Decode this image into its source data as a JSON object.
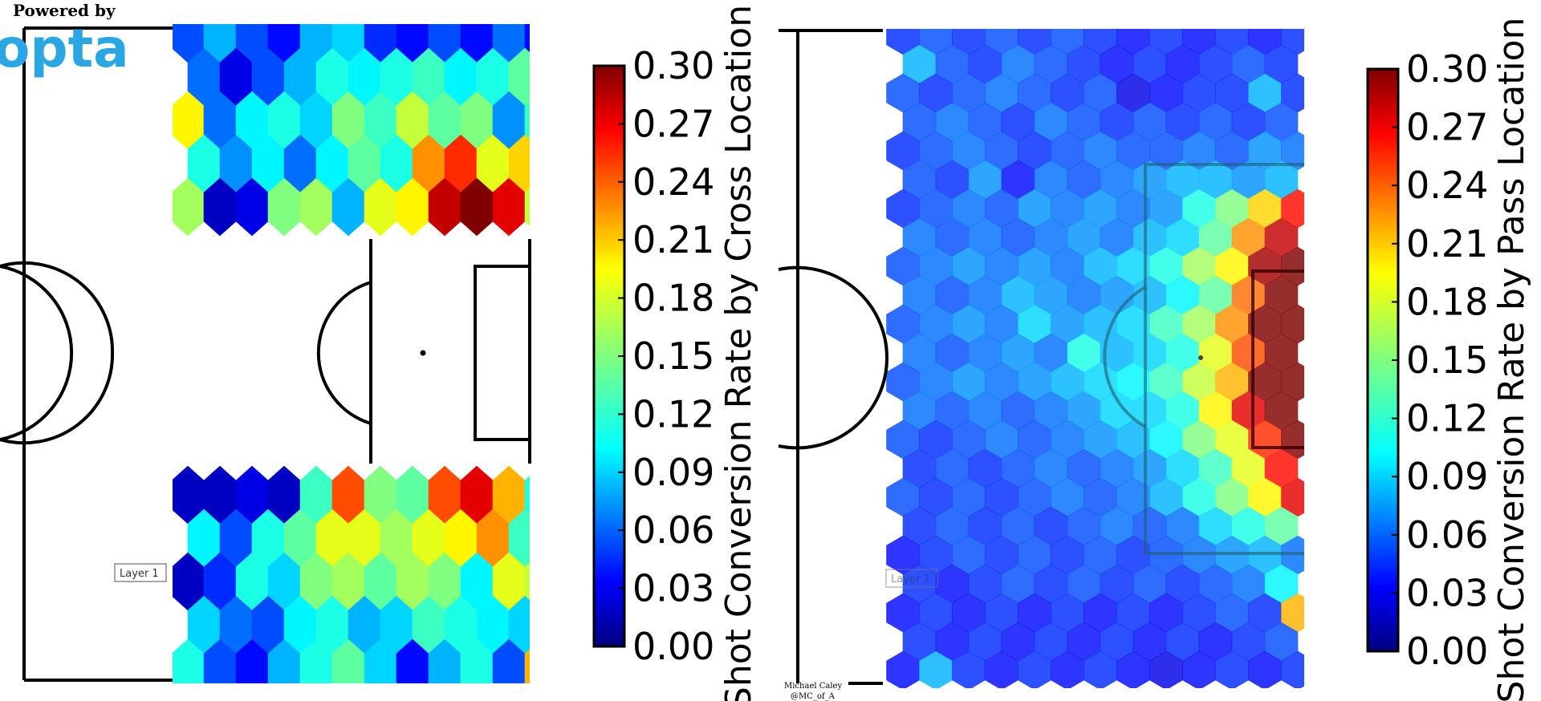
{
  "branding": {
    "powered_by": "Powered by",
    "logo_text": "opta",
    "credit_line1": "Michael Caley",
    "credit_line2": "@MC_of_A"
  },
  "chart_data": [
    {
      "type": "heatmap",
      "subtype": "hexbin",
      "title": "",
      "colorbar_label": "Shot Conversion Rate by Cross Location",
      "colorbar_ticks": [
        "0.30",
        "0.27",
        "0.24",
        "0.21",
        "0.18",
        "0.15",
        "0.12",
        "0.09",
        "0.06",
        "0.03",
        "0.00"
      ],
      "vmin": 0.0,
      "vmax": 0.3,
      "colormap": "jet",
      "annotation": "Layer 1",
      "regions": [
        {
          "name": "top",
          "rows": [
            [
              0.06,
              0.09,
              0.06,
              0.04,
              0.09,
              0.1,
              0.05,
              0.04,
              0.06,
              0.04,
              0.07,
              0.04
            ],
            [
              0.07,
              0.03,
              0.06,
              0.09,
              0.12,
              0.11,
              0.12,
              0.13,
              0.11,
              0.12,
              0.14
            ],
            [
              0.19,
              0.07,
              0.11,
              0.12,
              0.1,
              0.15,
              0.13,
              0.17,
              0.14,
              0.15,
              0.08,
              0.13
            ],
            [
              0.12,
              0.08,
              0.11,
              0.07,
              0.11,
              0.14,
              0.12,
              0.22,
              0.25,
              0.18,
              0.2
            ],
            [
              0.16,
              0.02,
              0.03,
              0.15,
              0.16,
              0.09,
              0.18,
              0.19,
              0.28,
              0.3,
              0.27,
              0.17
            ]
          ]
        },
        {
          "name": "bottom",
          "rows": [
            [
              0.02,
              0.02,
              0.03,
              0.02,
              0.13,
              0.24,
              0.15,
              0.14,
              0.24,
              0.27,
              0.21,
              0.12
            ],
            [
              0.11,
              0.06,
              0.12,
              0.14,
              0.18,
              0.18,
              0.16,
              0.18,
              0.19,
              0.22,
              0.13
            ],
            [
              0.02,
              0.05,
              0.12,
              0.1,
              0.15,
              0.16,
              0.14,
              0.16,
              0.15,
              0.11,
              0.18,
              0.17
            ],
            [
              0.1,
              0.07,
              0.06,
              0.11,
              0.12,
              0.09,
              0.1,
              0.13,
              0.12,
              0.11,
              0.1
            ],
            [
              0.12,
              0.06,
              0.04,
              0.09,
              0.12,
              0.14,
              0.1,
              0.04,
              0.09,
              0.12,
              0.06,
              0.21
            ]
          ]
        }
      ]
    },
    {
      "type": "heatmap",
      "subtype": "hexbin",
      "title": "",
      "colorbar_label": "Shot Conversion Rate by Pass Location",
      "colorbar_ticks": [
        "0.30",
        "0.27",
        "0.24",
        "0.21",
        "0.18",
        "0.15",
        "0.12",
        "0.09",
        "0.06",
        "0.03",
        "0.00"
      ],
      "vmin": 0.0,
      "vmax": 0.3,
      "colormap": "jet",
      "annotation": "Layer 1",
      "rows": [
        [
          0.05,
          0.06,
          0.05,
          0.06,
          0.05,
          0.06,
          0.05,
          0.04,
          0.05,
          0.04,
          0.05,
          0.04,
          0.05
        ],
        [
          0.09,
          0.06,
          0.05,
          0.07,
          0.06,
          0.05,
          0.04,
          0.05,
          0.04,
          0.05,
          0.06,
          0.05
        ],
        [
          0.06,
          0.05,
          0.06,
          0.07,
          0.06,
          0.05,
          0.06,
          0.03,
          0.04,
          0.05,
          0.05,
          0.09,
          0.05
        ],
        [
          0.06,
          0.07,
          0.06,
          0.05,
          0.07,
          0.06,
          0.05,
          0.06,
          0.05,
          0.06,
          0.05,
          0.06
        ],
        [
          0.05,
          0.06,
          0.07,
          0.06,
          0.05,
          0.06,
          0.07,
          0.06,
          0.06,
          0.07,
          0.06,
          0.08,
          0.07
        ],
        [
          0.06,
          0.05,
          0.08,
          0.04,
          0.07,
          0.06,
          0.07,
          0.08,
          0.09,
          0.09,
          0.08,
          0.09
        ],
        [
          0.05,
          0.06,
          0.07,
          0.06,
          0.08,
          0.07,
          0.08,
          0.07,
          0.08,
          0.12,
          0.15,
          0.2,
          0.26
        ],
        [
          0.07,
          0.06,
          0.07,
          0.06,
          0.07,
          0.08,
          0.07,
          0.09,
          0.1,
          0.14,
          0.22,
          0.28
        ],
        [
          0.06,
          0.07,
          0.08,
          0.07,
          0.08,
          0.07,
          0.09,
          0.1,
          0.12,
          0.16,
          0.19,
          0.29,
          0.3
        ],
        [
          0.07,
          0.06,
          0.07,
          0.09,
          0.08,
          0.07,
          0.08,
          0.09,
          0.11,
          0.14,
          0.23,
          0.3
        ],
        [
          0.06,
          0.07,
          0.08,
          0.07,
          0.1,
          0.08,
          0.09,
          0.1,
          0.13,
          0.16,
          0.22,
          0.3,
          0.3
        ],
        [
          0.07,
          0.06,
          0.07,
          0.08,
          0.07,
          0.12,
          0.09,
          0.1,
          0.12,
          0.18,
          0.24,
          0.3
        ],
        [
          0.06,
          0.07,
          0.08,
          0.07,
          0.08,
          0.09,
          0.1,
          0.11,
          0.13,
          0.17,
          0.21,
          0.3,
          0.3
        ],
        [
          0.07,
          0.06,
          0.07,
          0.06,
          0.07,
          0.08,
          0.1,
          0.1,
          0.12,
          0.19,
          0.27,
          0.3
        ],
        [
          0.06,
          0.05,
          0.06,
          0.07,
          0.06,
          0.07,
          0.08,
          0.09,
          0.11,
          0.15,
          0.18,
          0.25,
          0.3
        ],
        [
          0.05,
          0.06,
          0.05,
          0.06,
          0.07,
          0.06,
          0.07,
          0.08,
          0.1,
          0.13,
          0.18,
          0.26
        ],
        [
          0.06,
          0.05,
          0.06,
          0.05,
          0.06,
          0.07,
          0.06,
          0.07,
          0.09,
          0.12,
          0.15,
          0.19,
          0.27
        ],
        [
          0.05,
          0.06,
          0.05,
          0.06,
          0.05,
          0.06,
          0.07,
          0.06,
          0.07,
          0.1,
          0.12,
          0.14
        ],
        [
          0.04,
          0.05,
          0.06,
          0.05,
          0.06,
          0.05,
          0.06,
          0.05,
          0.06,
          0.07,
          0.08,
          0.09,
          0.07
        ],
        [
          0.05,
          0.04,
          0.05,
          0.06,
          0.05,
          0.06,
          0.05,
          0.06,
          0.05,
          0.06,
          0.07,
          0.11
        ],
        [
          0.04,
          0.05,
          0.04,
          0.05,
          0.04,
          0.05,
          0.04,
          0.05,
          0.04,
          0.05,
          0.06,
          0.05,
          0.21
        ],
        [
          0.05,
          0.04,
          0.05,
          0.04,
          0.05,
          0.04,
          0.05,
          0.04,
          0.05,
          0.04,
          0.05,
          0.06
        ],
        [
          0.04,
          0.09,
          0.05,
          0.04,
          0.05,
          0.04,
          0.05,
          0.04,
          0.03,
          0.04,
          0.05,
          0.04,
          0.05
        ]
      ]
    }
  ]
}
